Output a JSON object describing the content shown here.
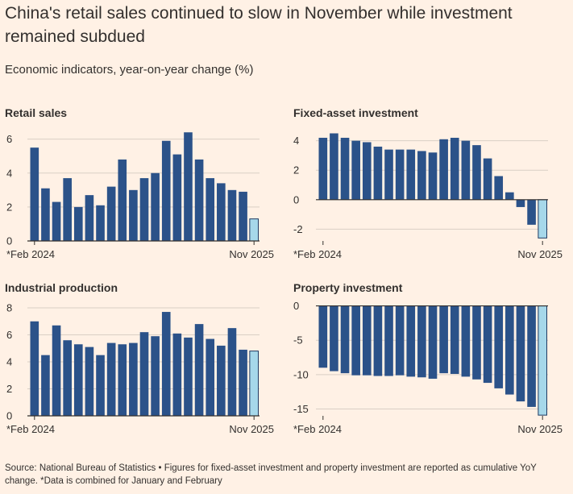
{
  "title": "China's retail sales continued to slow in November while investment remained subdued",
  "subtitle": "Economic indicators, year-on-year change (%)",
  "footer": "Source: National Bureau of Statistics • Figures for fixed-asset investment and property investment are reported as cumulative YoY change. *Data is combined for January and February",
  "colors": {
    "bar": "#2b5289",
    "latest": "#a6d8ea",
    "grid": "#d9cfc5",
    "axis": "#33302e",
    "background": "#fff1e5"
  },
  "chart_data": [
    {
      "type": "bar",
      "title": "Retail sales",
      "x_start_label": "*Feb 2024",
      "x_end_label": "Nov 2025",
      "ylim": [
        0,
        6.6
      ],
      "yticks": [
        0,
        2,
        4,
        6
      ],
      "values": [
        5.5,
        3.1,
        2.3,
        3.7,
        2.0,
        2.7,
        2.1,
        3.2,
        4.8,
        3.0,
        3.7,
        4.0,
        5.9,
        5.1,
        6.4,
        4.8,
        3.7,
        3.4,
        3.0,
        2.9,
        1.3
      ]
    },
    {
      "type": "bar",
      "title": "Fixed-asset investment",
      "x_start_label": "*Feb 2024",
      "x_end_label": "Nov 2025",
      "ylim": [
        -2.8,
        4.8
      ],
      "yticks": [
        -2,
        0,
        2,
        4
      ],
      "values": [
        4.2,
        4.5,
        4.2,
        4.0,
        3.9,
        3.6,
        3.4,
        3.4,
        3.4,
        3.3,
        3.2,
        4.1,
        4.2,
        4.0,
        3.7,
        2.8,
        1.6,
        0.5,
        -0.5,
        -1.7,
        -2.6
      ]
    },
    {
      "type": "bar",
      "title": "Industrial production",
      "x_start_label": "*Feb 2024",
      "x_end_label": "Nov 2025",
      "ylim": [
        0,
        8.3
      ],
      "yticks": [
        0,
        2,
        4,
        6,
        8
      ],
      "values": [
        7.0,
        4.5,
        6.7,
        5.6,
        5.3,
        5.1,
        4.5,
        5.4,
        5.3,
        5.4,
        6.2,
        5.9,
        7.7,
        6.1,
        5.8,
        6.8,
        5.7,
        5.2,
        6.5,
        4.9,
        4.8
      ]
    },
    {
      "type": "bar",
      "title": "Property investment",
      "x_start_label": "*Feb 2024",
      "x_end_label": "Nov 2025",
      "ylim": [
        -16,
        0.3
      ],
      "yticks": [
        0,
        -5,
        -10,
        -15
      ],
      "values": [
        -9.0,
        -9.5,
        -9.8,
        -10.1,
        -10.1,
        -10.2,
        -10.2,
        -10.1,
        -10.3,
        -10.4,
        -10.6,
        -9.8,
        -9.9,
        -10.3,
        -10.7,
        -11.2,
        -12.0,
        -12.9,
        -13.9,
        -14.7,
        -15.9
      ]
    }
  ]
}
